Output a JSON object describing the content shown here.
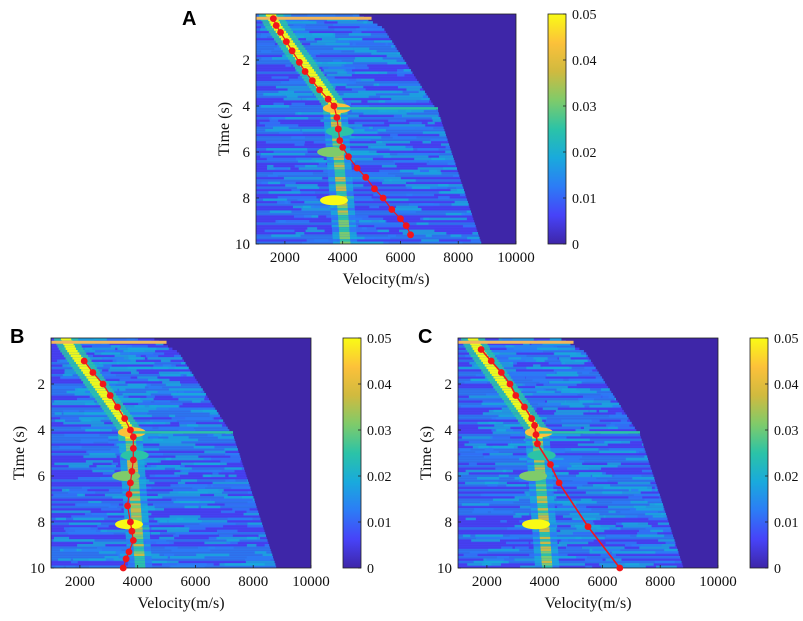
{
  "colormap": [
    "#3e26a8",
    "#4743f8",
    "#2c7cf6",
    "#19aadc",
    "#2bc3a7",
    "#7fcb6a",
    "#d0ba3f",
    "#fcc13a",
    "#f9fb15"
  ],
  "pick_color": "#f2161b",
  "chart_data": [
    {
      "panel": "A",
      "type": "heatmap",
      "xlabel": "Velocity(m/s)",
      "ylabel": "Time (s)",
      "xlim": [
        1000,
        10000
      ],
      "ylim": [
        10,
        0
      ],
      "xticks": [
        2000,
        4000,
        6000,
        8000,
        10000
      ],
      "yticks": [
        2,
        4,
        6,
        8,
        10
      ],
      "colorbar": {
        "min": 0,
        "max": 0.05,
        "ticks": [
          "0",
          "0.01",
          "0.02",
          "0.03",
          "0.04",
          "0.05"
        ]
      },
      "picks_connected": false,
      "picks": [
        [
          1600,
          0.2
        ],
        [
          1700,
          0.5
        ],
        [
          1850,
          0.8
        ],
        [
          2050,
          1.2
        ],
        [
          2250,
          1.6
        ],
        [
          2500,
          2.1
        ],
        [
          2700,
          2.5
        ],
        [
          2950,
          2.9
        ],
        [
          3200,
          3.3
        ],
        [
          3500,
          3.7
        ],
        [
          3700,
          4.0
        ],
        [
          3800,
          4.5
        ],
        [
          3850,
          5.0
        ],
        [
          3900,
          5.5
        ],
        [
          4000,
          5.8
        ],
        [
          4200,
          6.2
        ],
        [
          4500,
          6.7
        ],
        [
          4800,
          7.1
        ],
        [
          5100,
          7.6
        ],
        [
          5400,
          8.0
        ],
        [
          5700,
          8.5
        ],
        [
          6000,
          8.9
        ],
        [
          6200,
          9.2
        ],
        [
          6350,
          9.6
        ]
      ]
    },
    {
      "panel": "B",
      "type": "heatmap",
      "xlabel": "Velocity(m/s)",
      "ylabel": "Time (s)",
      "xlim": [
        1000,
        10000
      ],
      "ylim": [
        10,
        0
      ],
      "xticks": [
        2000,
        4000,
        6000,
        8000,
        10000
      ],
      "yticks": [
        2,
        4,
        6,
        8,
        10
      ],
      "colorbar": {
        "min": 0,
        "max": 0.05,
        "ticks": [
          "0",
          "0.01",
          "0.02",
          "0.03",
          "0.04",
          "0.05"
        ]
      },
      "picks_connected": false,
      "picks": [
        [
          2150,
          1.0
        ],
        [
          2450,
          1.5
        ],
        [
          2800,
          2.0
        ],
        [
          3050,
          2.5
        ],
        [
          3300,
          3.0
        ],
        [
          3550,
          3.5
        ],
        [
          3750,
          4.0
        ],
        [
          3850,
          4.3
        ],
        [
          3850,
          4.8
        ],
        [
          3850,
          5.3
        ],
        [
          3800,
          5.8
        ],
        [
          3750,
          6.3
        ],
        [
          3700,
          6.8
        ],
        [
          3650,
          7.3
        ],
        [
          3750,
          8.0
        ],
        [
          3800,
          8.4
        ],
        [
          3850,
          8.8
        ],
        [
          3700,
          9.3
        ],
        [
          3600,
          9.6
        ],
        [
          3500,
          10.0
        ]
      ]
    },
    {
      "panel": "C",
      "type": "heatmap",
      "xlabel": "Velocity(m/s)",
      "ylabel": "Time (s)",
      "xlim": [
        1000,
        10000
      ],
      "ylim": [
        10,
        0
      ],
      "xticks": [
        2000,
        4000,
        6000,
        8000,
        10000
      ],
      "yticks": [
        2,
        4,
        6,
        8,
        10
      ],
      "colorbar": {
        "min": 0,
        "max": 0.05,
        "ticks": [
          "0",
          "0.01",
          "0.02",
          "0.03",
          "0.04",
          "0.05"
        ]
      },
      "picks_connected": true,
      "picks": [
        [
          1800,
          0.5
        ],
        [
          2150,
          1.0
        ],
        [
          2500,
          1.5
        ],
        [
          2800,
          2.0
        ],
        [
          3000,
          2.5
        ],
        [
          3300,
          3.0
        ],
        [
          3550,
          3.5
        ],
        [
          3650,
          3.8
        ],
        [
          3700,
          4.2
        ],
        [
          3750,
          4.6
        ],
        [
          4200,
          5.5
        ],
        [
          4500,
          6.3
        ],
        [
          5500,
          8.2
        ],
        [
          6600,
          10.0
        ]
      ]
    }
  ]
}
